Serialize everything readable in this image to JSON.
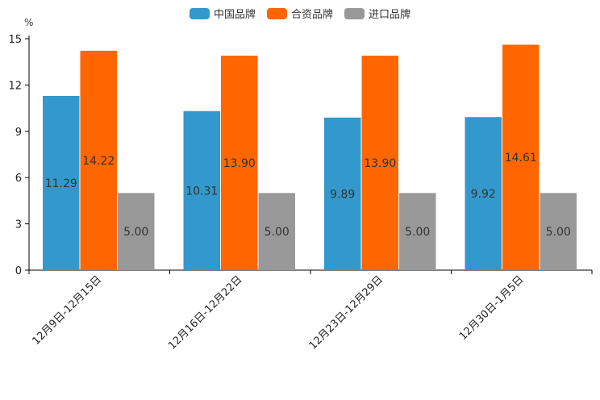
{
  "chart_data": {
    "type": "bar",
    "unit": "%",
    "categories": [
      "12月9日-12月15日",
      "12月16日-12月22日",
      "12月23日-12月29日",
      "12月30日-1月5日"
    ],
    "series": [
      {
        "name": "中国品牌",
        "color": "#3399cc",
        "values": [
          11.29,
          10.31,
          9.89,
          9.92
        ],
        "labels": [
          "11.29",
          "10.31",
          "9.89",
          "9.92"
        ]
      },
      {
        "name": "合资品牌",
        "color": "#ff6600",
        "values": [
          14.22,
          13.9,
          13.9,
          14.61
        ],
        "labels": [
          "14.22",
          "13.90",
          "13.90",
          "14.61"
        ]
      },
      {
        "name": "进口品牌",
        "color": "#999999",
        "values": [
          5.0,
          5.0,
          5.0,
          5.0
        ],
        "labels": [
          "5.00",
          "5.00",
          "5.00",
          "5.00"
        ]
      }
    ],
    "y_ticks": [
      "0",
      "3",
      "6",
      "9",
      "12",
      "15"
    ],
    "ylim": [
      0,
      15
    ],
    "legend_position": "top-center"
  }
}
